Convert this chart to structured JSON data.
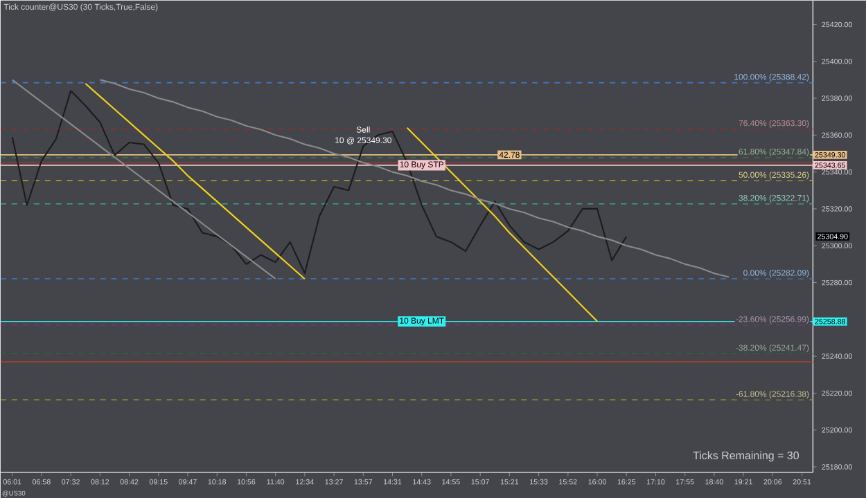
{
  "chart_data": {
    "type": "line",
    "title": "Tick counter@US30 (30 Ticks,True,False)",
    "categories": [
      "06:01",
      null,
      "06:58",
      null,
      "07:32",
      null,
      "08:12",
      null,
      "08:42",
      null,
      "09:15",
      null,
      "09:47",
      null,
      "10:18",
      null,
      "10:56",
      null,
      "11:40",
      null,
      "12:34",
      null,
      "13:27",
      null,
      "13:57",
      null,
      "14:31",
      null,
      "14:43",
      null,
      "14:55",
      null,
      "15:07",
      null,
      "15:21",
      null,
      "15:33",
      null,
      "15:52",
      null,
      "16:00",
      null,
      "16:25",
      null,
      "17:10",
      null,
      "17:55",
      null,
      "18:40",
      null,
      "19:21",
      null,
      "20:06",
      null,
      "20:51"
    ],
    "ylim": [
      25177,
      25433
    ],
    "yticks": [
      {
        "value": 25180,
        "label": "25180.00"
      },
      {
        "value": 25200,
        "label": "25200.00"
      },
      {
        "value": 25220,
        "label": "25220.00"
      },
      {
        "value": 25240,
        "label": "25240.00"
      },
      {
        "value": 25260,
        "label": null
      },
      {
        "value": 25280,
        "label": "25280.00"
      },
      {
        "value": 25300,
        "label": "25300.00"
      },
      {
        "value": 25320,
        "label": "25320.00"
      },
      {
        "value": 25340,
        "label": "25340.00"
      },
      {
        "value": 25360,
        "label": "25360.00"
      },
      {
        "value": 25380,
        "label": "25380.00"
      },
      {
        "value": 25400,
        "label": "25400.00"
      },
      {
        "value": 25420,
        "label": "25420.00"
      }
    ],
    "series": [
      {
        "color": "#1c1c1c",
        "values": [
          25359,
          25322,
          25346,
          25358,
          25384,
          25376,
          25367,
          25349,
          25356,
          25355,
          25345,
          25322,
          25320,
          25307,
          25305,
          25300,
          25290,
          25295,
          25291,
          25302,
          25285,
          25316,
          25332,
          25330,
          25354,
          25360,
          25362,
          25345,
          25322,
          25305,
          25302,
          25297,
          25311,
          25324,
          25311,
          25302,
          25298,
          25302,
          25308,
          25320,
          25320,
          25292,
          25305,
          null,
          null,
          null,
          null,
          null,
          null,
          null,
          null,
          null,
          null,
          null,
          null
        ]
      },
      {
        "color": "#f2d21b",
        "values": [
          null,
          null,
          null,
          null,
          null,
          25388,
          25381,
          25374,
          25367,
          25360,
          25353,
          25346,
          25338,
          25331,
          25324,
          25317,
          25310,
          25303,
          25296,
          25289,
          25282,
          null,
          null,
          null,
          null,
          null,
          null,
          null,
          null,
          null,
          null,
          null,
          null,
          null,
          null,
          null,
          null,
          null,
          null,
          null,
          null,
          null,
          null,
          null,
          null,
          null,
          null,
          null,
          null,
          null,
          null,
          null,
          null,
          null,
          null
        ]
      },
      {
        "color": "#f2d21b",
        "values": [
          null,
          null,
          null,
          null,
          null,
          null,
          null,
          null,
          null,
          null,
          null,
          null,
          null,
          null,
          null,
          null,
          null,
          null,
          null,
          null,
          null,
          null,
          null,
          null,
          null,
          null,
          null,
          25364,
          25356,
          25348,
          25340,
          25332,
          25324,
          25316,
          25307,
          25299,
          25291,
          25283,
          25275,
          25267,
          25259,
          null,
          null,
          null,
          null,
          null,
          null,
          null,
          null,
          null,
          null,
          null,
          null,
          null,
          null
        ]
      },
      {
        "color": "#8a8a8a",
        "values": [
          25390,
          25384,
          25378,
          25372,
          25366,
          25360,
          25354,
          25348,
          25342,
          25336,
          25330,
          25324,
          25318,
          25312,
          25306,
          25300,
          25294,
          25288,
          25282,
          null,
          null,
          null,
          null,
          null,
          null,
          null,
          null,
          null,
          null,
          null,
          null,
          null,
          null,
          null,
          null,
          null,
          null,
          null,
          null,
          null,
          null,
          null,
          null,
          null,
          null,
          null,
          null,
          null,
          null,
          null,
          null,
          null,
          null,
          null,
          null
        ]
      },
      {
        "color": "#8a8a8a",
        "values": [
          null,
          null,
          null,
          null,
          null,
          null,
          25390,
          25388,
          25385,
          25383,
          25380,
          25378,
          25375,
          25373,
          25370,
          25368,
          25365,
          25363,
          25360,
          25358,
          25355,
          25353,
          25350,
          25348,
          25345,
          25343,
          25340,
          25338,
          25335,
          25333,
          25330,
          25328,
          25325,
          25323,
          25320,
          25318,
          25315,
          25313,
          25310,
          25308,
          25305,
          25303,
          25300,
          25298,
          25295,
          25293,
          25290,
          25288,
          25285,
          25283,
          null,
          null,
          null,
          null,
          null
        ]
      }
    ],
    "ref_lines": [
      {
        "axis": "y",
        "value": 25388.42,
        "label": "100.00% (25388.42)",
        "color": "#3a7cc8",
        "line_style": "dashed"
      },
      {
        "axis": "y",
        "value": 25363.3,
        "label": "76.40% (25363.30)",
        "color": "#8b3030",
        "line_style": "dashed"
      },
      {
        "axis": "y",
        "value": 25347.84,
        "label": "61.80% (25347.84)",
        "color": "#3d7a3d",
        "line_style": "dashed"
      },
      {
        "axis": "y",
        "value": 25335.26,
        "label": "50.00% (25335.26)",
        "color": "#bfa51e",
        "line_style": "dashed"
      },
      {
        "axis": "y",
        "value": 25322.71,
        "label": "38.20% (25322.71)",
        "color": "#36a88a",
        "line_style": "dashed"
      },
      {
        "axis": "y",
        "value": 25282.09,
        "label": "0.00% (25282.09)",
        "color": "#3a7cc8",
        "line_style": "dashed"
      },
      {
        "axis": "y",
        "value": 25256.99,
        "label": "-23.60% (25256.99)",
        "color": "#6a3a6e",
        "line_style": "dashed"
      },
      {
        "axis": "y",
        "value": 25241.47,
        "label": "-38.20% (25241.47)",
        "color": "#3b5e3b",
        "line_style": "dashed"
      },
      {
        "axis": "y",
        "value": 25216.38,
        "label": "-61.80% (25216.38)",
        "color": "#8c8a32",
        "line_style": "dashed"
      },
      {
        "axis": "y",
        "value": 25345,
        "color": "#9a3a2a",
        "line_style": "solid"
      },
      {
        "axis": "y",
        "value": 25237,
        "color": "#b0402a",
        "line_style": "solid"
      },
      {
        "axis": "y",
        "value": 25349.3,
        "label": "25349.30",
        "color": "#e8c08a",
        "line_style": "solid"
      },
      {
        "axis": "y",
        "value": 25343.65,
        "label": "25343.65",
        "color": "#f4c6cc",
        "line_style": "solid"
      },
      {
        "axis": "y",
        "value": 25258.88,
        "label": "25258.88",
        "color": "#2ef0f0",
        "line_style": "solid"
      }
    ],
    "annotations": [
      {
        "text": "Sell",
        "x": "13:57",
        "y": 25363
      },
      {
        "text": "10 @ 25349.30",
        "x": "13:57",
        "y": 25357
      },
      {
        "text": "42.78",
        "x": "15:21",
        "y": 25349.3
      },
      {
        "text": "10  Buy STP",
        "x": "14:43",
        "y": 25343.65
      },
      {
        "text": "10  Buy LMT",
        "x": "14:43",
        "y": 25258.88
      },
      "25304.90",
      "Ticks Remaining = 30",
      "@US30"
    ],
    "grid": false
  }
}
